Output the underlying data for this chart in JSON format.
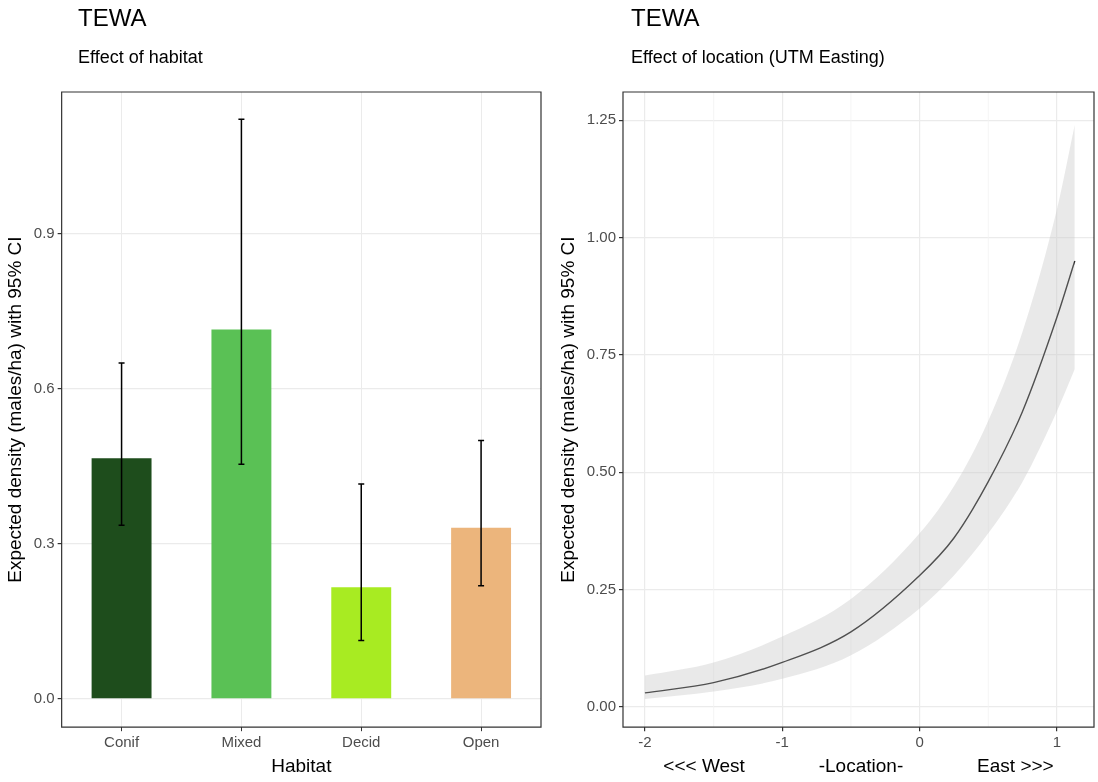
{
  "chart_data": [
    {
      "type": "bar",
      "title": "TEWA",
      "subtitle": "Effect of habitat",
      "xlabel": "Habitat",
      "ylabel": "Expected density (males/ha) with 95% CI",
      "categories": [
        "Conif",
        "Mixed",
        "Decid",
        "Open"
      ],
      "values": [
        0.466,
        0.715,
        0.216,
        0.331
      ],
      "colors": [
        "#1e4d1c",
        "#5ac155",
        "#a8eb22",
        "#ecb57c"
      ],
      "errors": [
        [
          0.336,
          0.65
        ],
        [
          0.454,
          1.122
        ],
        [
          0.113,
          0.416
        ],
        [
          0.219,
          0.5
        ]
      ],
      "ylim": [
        -0.055,
        1.175
      ],
      "yticks": [
        {
          "value": 0,
          "label": "0.0"
        },
        0.3,
        0.6,
        0.9
      ],
      "grid": true
    },
    {
      "type": "line",
      "title": "TEWA",
      "subtitle": "Effect of location (UTM Easting)",
      "xlabel": "<<< West              -Location-              East >>>",
      "ylabel": "Expected density (males/ha) with 95% CI",
      "xlim": [
        -2.16,
        1.27
      ],
      "xticks": [
        -2,
        -1,
        0,
        1
      ],
      "ylim": [
        -0.043,
        1.31
      ],
      "yticks": [
        {
          "value": 0,
          "label": "0.00"
        },
        0.25,
        {
          "value": 0.5,
          "label": "0.50"
        },
        0.75,
        {
          "value": 1,
          "label": "1.00"
        },
        1.25
      ],
      "grid": true,
      "series": [
        {
          "color": "#000000",
          "x": [
            -2,
            -1.5,
            -1,
            -0.5,
            0,
            0.25,
            0.5,
            0.75,
            1,
            1.13
          ],
          "values": [
            0.03,
            0.052,
            0.095,
            0.16,
            0.28,
            0.36,
            0.48,
            0.63,
            0.83,
            0.95
          ],
          "lower": [
            0.017,
            0.033,
            0.06,
            0.11,
            0.21,
            0.28,
            0.37,
            0.48,
            0.63,
            0.72
          ],
          "upper": [
            0.067,
            0.095,
            0.15,
            0.23,
            0.37,
            0.47,
            0.61,
            0.8,
            1.06,
            1.24
          ]
        }
      ]
    }
  ]
}
